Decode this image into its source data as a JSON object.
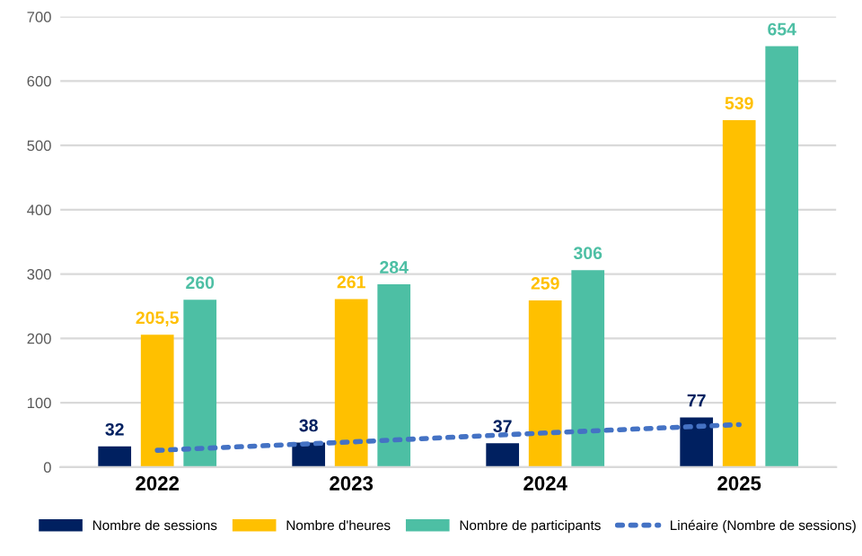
{
  "chart_data": {
    "type": "bar",
    "categories": [
      "2022",
      "2023",
      "2024",
      "2025"
    ],
    "series": [
      {
        "name": "Nombre de sessions",
        "color": "#002060",
        "values": [
          32,
          38,
          37,
          77
        ],
        "value_labels": [
          "32",
          "38",
          "37",
          "77"
        ]
      },
      {
        "name": "Nombre d'heures",
        "color": "#ffc000",
        "values": [
          205.5,
          261,
          259,
          539
        ],
        "value_labels": [
          "205,5",
          "261",
          "259",
          "539"
        ]
      },
      {
        "name": "Nombre de participants",
        "color": "#4dbfa4",
        "values": [
          260,
          284,
          306,
          654
        ],
        "value_labels": [
          "260",
          "284",
          "306",
          "654"
        ]
      },
      {
        "name": "Linéaire (Nombre de sessions)",
        "type": "line",
        "color": "#4472c4",
        "line_style": "dotted",
        "values": [
          26,
          39,
          53,
          66
        ]
      }
    ],
    "ylim": [
      0,
      700
    ],
    "yticks": [
      0,
      100,
      200,
      300,
      400,
      500,
      600,
      700
    ],
    "grid": "y",
    "legend": "bottom"
  }
}
